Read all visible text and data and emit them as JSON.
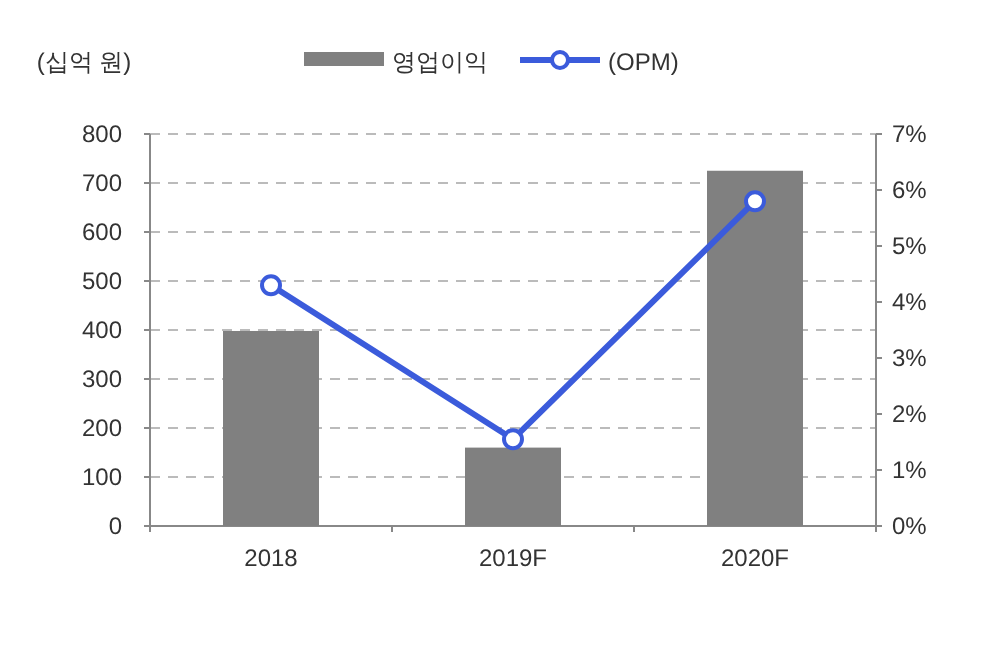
{
  "chart_data": {
    "type": "bar",
    "ylabel": "(십억 원)",
    "categories": [
      "2018",
      "2019F",
      "2020F"
    ],
    "series": [
      {
        "name": "영업이익",
        "color": "#808080",
        "values": [
          398,
          160,
          725
        ]
      },
      {
        "name": "(OPM)",
        "type": "line",
        "axis": "y2",
        "color": "#3b5bdb",
        "marker": "circle",
        "values": [
          4.3,
          1.55,
          5.8
        ]
      }
    ],
    "ylim": [
      0,
      800
    ],
    "yticks": [
      0,
      100,
      200,
      300,
      400,
      500,
      600,
      700,
      800
    ],
    "y2lim": [
      0,
      7
    ],
    "y2ticks": [
      {
        "value": 0,
        "label": "0%"
      },
      {
        "value": 1,
        "label": "1%"
      },
      {
        "value": 2,
        "label": "2%"
      },
      {
        "value": 3,
        "label": "3%"
      },
      {
        "value": 4,
        "label": "4%"
      },
      {
        "value": 5,
        "label": "5%"
      },
      {
        "value": 6,
        "label": "6%"
      },
      {
        "value": 7,
        "label": "7%"
      }
    ],
    "grid": "y",
    "legend": "top"
  }
}
